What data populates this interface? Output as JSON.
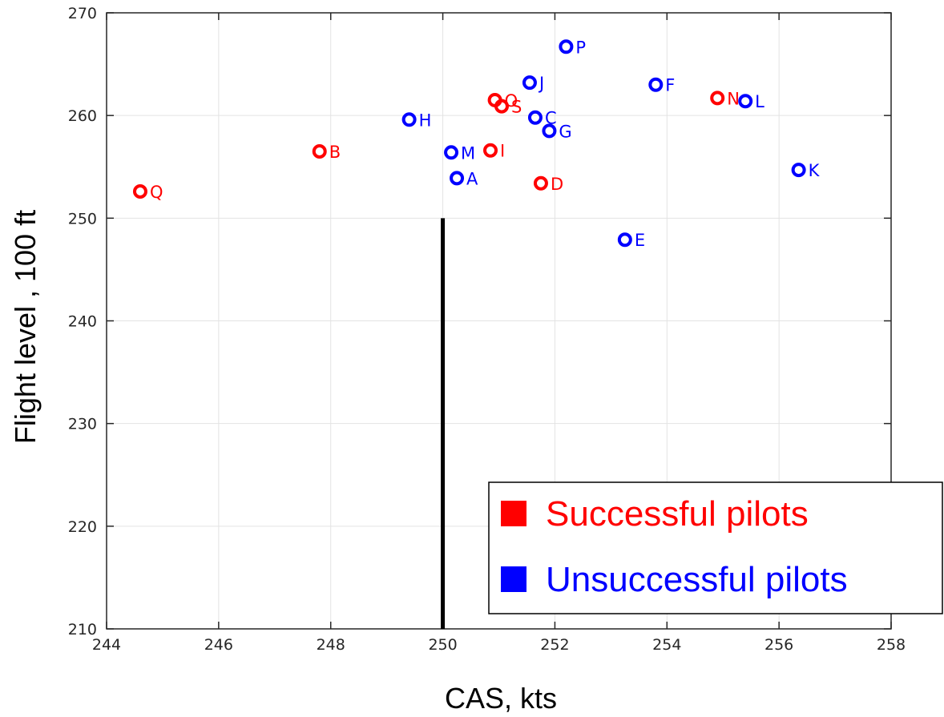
{
  "chart_data": {
    "type": "scatter",
    "xlabel": "CAS, kts",
    "ylabel": "Flight level , 100 ft",
    "xlim": [
      244,
      258
    ],
    "ylim": [
      210,
      270
    ],
    "xticks": [
      244,
      246,
      248,
      250,
      252,
      254,
      256,
      258
    ],
    "yticks": [
      210,
      220,
      230,
      240,
      250,
      260,
      270
    ],
    "grid": true,
    "reference_line": {
      "x": 250,
      "y_from": 210,
      "y_to": 250,
      "color": "#000000"
    },
    "legend": {
      "placement": "bottom-right",
      "entries": [
        {
          "label": "Successful pilots",
          "color": "#ff0000"
        },
        {
          "label": "Unsuccessful pilots",
          "color": "#0000ff"
        }
      ]
    },
    "series": [
      {
        "name": "Successful pilots",
        "color": "#ff0000",
        "points": [
          {
            "label": "Q",
            "x": 244.6,
            "y": 252.6
          },
          {
            "label": "B",
            "x": 247.8,
            "y": 256.5
          },
          {
            "label": "I",
            "x": 250.85,
            "y": 256.6
          },
          {
            "label": "D",
            "x": 251.75,
            "y": 253.4
          },
          {
            "label": "O",
            "x": 250.93,
            "y": 261.5
          },
          {
            "label": "S",
            "x": 251.05,
            "y": 260.9
          },
          {
            "label": "N",
            "x": 254.9,
            "y": 261.7
          }
        ]
      },
      {
        "name": "Unsuccessful pilots",
        "color": "#0000ff",
        "points": [
          {
            "label": "H",
            "x": 249.4,
            "y": 259.6
          },
          {
            "label": "M",
            "x": 250.15,
            "y": 256.4
          },
          {
            "label": "A",
            "x": 250.25,
            "y": 253.9
          },
          {
            "label": "J",
            "x": 251.55,
            "y": 263.2
          },
          {
            "label": "C",
            "x": 251.65,
            "y": 259.8
          },
          {
            "label": "G",
            "x": 251.9,
            "y": 258.5
          },
          {
            "label": "P",
            "x": 252.2,
            "y": 266.7
          },
          {
            "label": "E",
            "x": 253.25,
            "y": 247.9
          },
          {
            "label": "F",
            "x": 253.8,
            "y": 263.0
          },
          {
            "label": "L",
            "x": 255.4,
            "y": 261.4
          },
          {
            "label": "K",
            "x": 256.35,
            "y": 254.7
          }
        ]
      }
    ]
  }
}
